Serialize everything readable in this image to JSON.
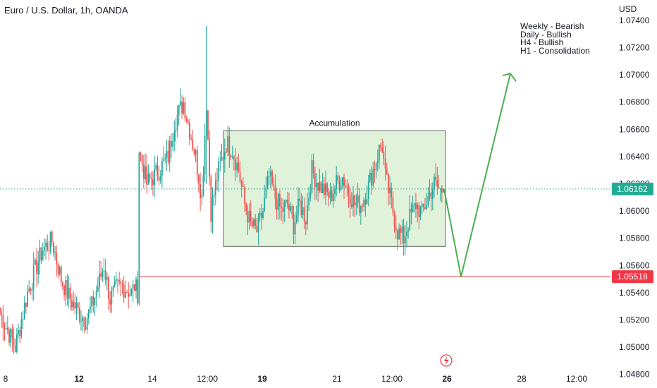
{
  "header": {
    "symbol_title": "Euro / U.S. Dollar, 1h, OANDA",
    "currency": "USD"
  },
  "colors": {
    "bullish": "#26a69a",
    "bearish": "#ef5350",
    "box_fill": "#e1f2db",
    "box_stroke": "#5e6b5b",
    "projection": "#4caf50",
    "current_tag": "#22ab94",
    "level_tag": "#f23645"
  },
  "annotations": {
    "box_label": "Accumulation",
    "notes": [
      "Weekly - Bearish",
      "Daily - Bullish",
      "H4 - Bullish",
      "H1 - Consolidation"
    ]
  },
  "chart_data": {
    "type": "candlestick",
    "title": "Euro / U.S. Dollar, 1h, OANDA",
    "y_axis": {
      "unit": "USD",
      "ticks": [
        "1.07400",
        "1.07200",
        "1.07000",
        "1.06800",
        "1.06600",
        "1.06400",
        "1.06200",
        "1.06000",
        "1.05800",
        "1.05600",
        "1.05400",
        "1.05200",
        "1.05000",
        "1.04800"
      ],
      "range": [
        1.047,
        1.0755
      ]
    },
    "x_axis": {
      "ticks": [
        "8",
        "12",
        "14",
        "12:00",
        "19",
        "21",
        "12:00",
        "26",
        "28",
        "12:00"
      ],
      "bold_ticks": [
        "12",
        "19",
        "26"
      ]
    },
    "current_price": {
      "value": 1.06162,
      "label": "1.06162"
    },
    "horizontal_level": {
      "value": 1.05518,
      "label": "1.05518"
    },
    "accumulation_box": {
      "high": 1.0659,
      "low": 1.0574,
      "label": "Accumulation"
    },
    "projection_path": [
      {
        "from": "last candle",
        "price": 1.0616
      },
      {
        "price": 1.05518
      },
      {
        "price": 1.0701
      }
    ],
    "price_path_anchors": [
      {
        "i": 0,
        "p": 1.0525
      },
      {
        "i": 4,
        "p": 1.0515
      },
      {
        "i": 10,
        "p": 1.05
      },
      {
        "i": 18,
        "p": 1.054
      },
      {
        "i": 24,
        "p": 1.056
      },
      {
        "i": 28,
        "p": 1.0572
      },
      {
        "i": 34,
        "p": 1.0578
      },
      {
        "i": 40,
        "p": 1.055
      },
      {
        "i": 46,
        "p": 1.0535
      },
      {
        "i": 52,
        "p": 1.0525
      },
      {
        "i": 56,
        "p": 1.052
      },
      {
        "i": 60,
        "p": 1.053
      },
      {
        "i": 64,
        "p": 1.0545
      },
      {
        "i": 68,
        "p": 1.056
      },
      {
        "i": 72,
        "p": 1.0535
      },
      {
        "i": 76,
        "p": 1.0543
      },
      {
        "i": 80,
        "p": 1.0545
      },
      {
        "i": 86,
        "p": 1.054
      },
      {
        "i": 88,
        "p": 1.0545
      },
      {
        "i": 90,
        "p": 1.054
      },
      {
        "i": 91,
        "p": 1.0645
      },
      {
        "i": 96,
        "p": 1.062
      },
      {
        "i": 100,
        "p": 1.0625
      },
      {
        "i": 104,
        "p": 1.063
      },
      {
        "i": 110,
        "p": 1.064
      },
      {
        "i": 114,
        "p": 1.0665
      },
      {
        "i": 120,
        "p": 1.068
      },
      {
        "i": 124,
        "p": 1.066
      },
      {
        "i": 128,
        "p": 1.064
      },
      {
        "i": 132,
        "p": 1.061
      },
      {
        "i": 135,
        "p": 1.068
      },
      {
        "i": 138,
        "p": 1.06
      },
      {
        "i": 142,
        "p": 1.0625
      },
      {
        "i": 148,
        "p": 1.065
      },
      {
        "i": 152,
        "p": 1.0645
      },
      {
        "i": 156,
        "p": 1.063
      },
      {
        "i": 160,
        "p": 1.0605
      },
      {
        "i": 164,
        "p": 1.059
      },
      {
        "i": 168,
        "p": 1.0585
      },
      {
        "i": 172,
        "p": 1.06
      },
      {
        "i": 176,
        "p": 1.0625
      },
      {
        "i": 180,
        "p": 1.061
      },
      {
        "i": 184,
        "p": 1.06
      },
      {
        "i": 188,
        "p": 1.0605
      },
      {
        "i": 192,
        "p": 1.059
      },
      {
        "i": 196,
        "p": 1.0605
      },
      {
        "i": 200,
        "p": 1.0595
      },
      {
        "i": 204,
        "p": 1.063
      },
      {
        "i": 208,
        "p": 1.062
      },
      {
        "i": 212,
        "p": 1.0615
      },
      {
        "i": 216,
        "p": 1.061
      },
      {
        "i": 220,
        "p": 1.062
      },
      {
        "i": 224,
        "p": 1.0625
      },
      {
        "i": 228,
        "p": 1.0615
      },
      {
        "i": 232,
        "p": 1.0605
      },
      {
        "i": 236,
        "p": 1.0605
      },
      {
        "i": 240,
        "p": 1.0615
      },
      {
        "i": 244,
        "p": 1.063
      },
      {
        "i": 248,
        "p": 1.0645
      },
      {
        "i": 250,
        "p": 1.0648
      },
      {
        "i": 252,
        "p": 1.0625
      },
      {
        "i": 256,
        "p": 1.0605
      },
      {
        "i": 260,
        "p": 1.0585
      },
      {
        "i": 264,
        "p": 1.058
      },
      {
        "i": 268,
        "p": 1.0595
      },
      {
        "i": 272,
        "p": 1.0605
      },
      {
        "i": 276,
        "p": 1.0598
      },
      {
        "i": 280,
        "p": 1.061
      },
      {
        "i": 284,
        "p": 1.062
      },
      {
        "i": 288,
        "p": 1.0615
      },
      {
        "i": 290,
        "p": 1.0616
      }
    ]
  }
}
